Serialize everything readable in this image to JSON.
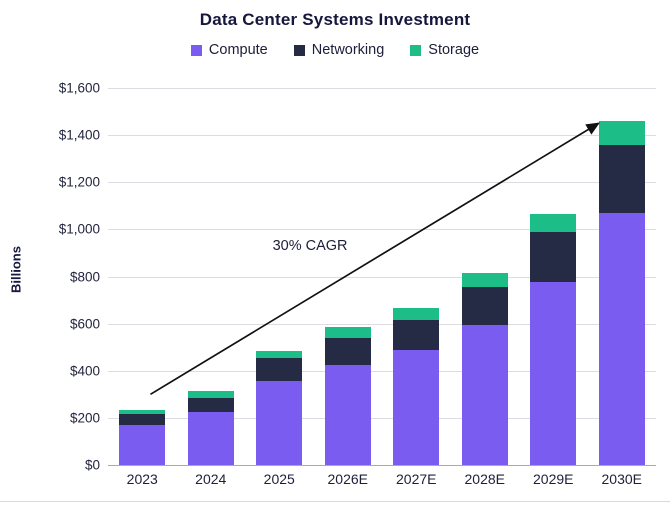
{
  "chart_data": {
    "type": "bar",
    "stacked": true,
    "title": "Data Center Systems Investment",
    "xlabel": "",
    "ylabel": "Billions",
    "categories": [
      "2023",
      "2024",
      "2025",
      "2026E",
      "2027E",
      "2028E",
      "2029E",
      "2030E"
    ],
    "series": [
      {
        "name": "Compute",
        "color": "#7B5CF0",
        "values": [
          170,
          225,
          355,
          425,
          490,
          595,
          775,
          1070
        ]
      },
      {
        "name": "Networking",
        "color": "#252A45",
        "values": [
          45,
          60,
          100,
          115,
          125,
          160,
          215,
          290
        ]
      },
      {
        "name": "Storage",
        "color": "#1CBD86",
        "values": [
          20,
          30,
          30,
          45,
          50,
          60,
          75,
          100
        ]
      }
    ],
    "totals": [
      235,
      315,
      485,
      585,
      665,
      815,
      1065,
      1460
    ],
    "ylim": [
      0,
      1600
    ],
    "yticks": [
      {
        "label": "$0",
        "value": 0
      },
      {
        "label": "$200",
        "value": 200
      },
      {
        "label": "$400",
        "value": 400
      },
      {
        "label": "$600",
        "value": 600
      },
      {
        "label": "$800",
        "value": 800
      },
      {
        "label": "$1,000",
        "value": 1000
      },
      {
        "label": "$1,200",
        "value": 1200
      },
      {
        "label": "$1,400",
        "value": 1400
      },
      {
        "label": "$1,600",
        "value": 1600
      }
    ],
    "grid": true,
    "legend_position": "top",
    "annotation": {
      "label": "30% CAGR",
      "arrow_color": "#111111",
      "arrow_from": {
        "category_index": 0.12,
        "value": 300
      },
      "arrow_to": {
        "category_index": 6.66,
        "value": 1450
      },
      "label_at": {
        "category_index": 2.45,
        "value": 930
      }
    }
  }
}
